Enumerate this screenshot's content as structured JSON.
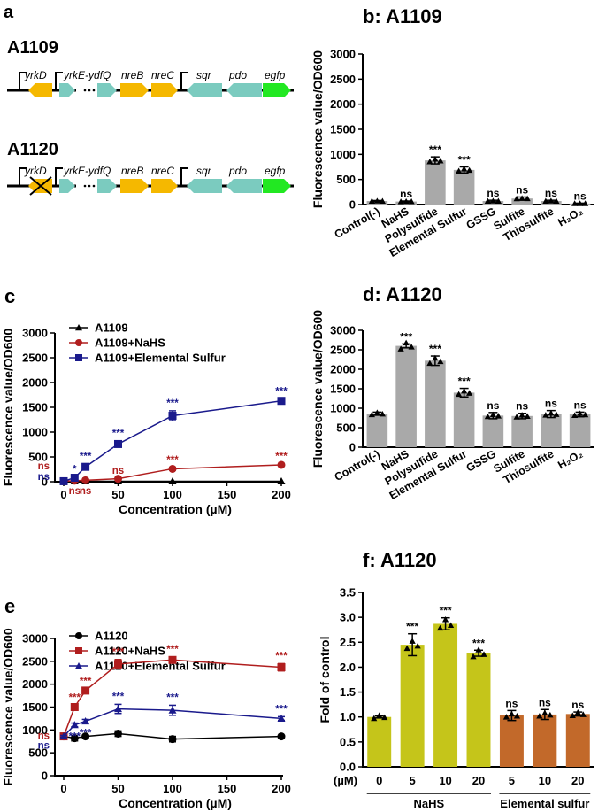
{
  "panels": {
    "a": {
      "letter": "a",
      "strains": [
        {
          "name": "A1109",
          "knockout": false
        },
        {
          "name": "A1120",
          "knockout": true
        }
      ],
      "gene_labels": {
        "yrkD": "yrkD",
        "yrkE": "yrkE-ydfQ",
        "nreB": "nreB",
        "nreC": "nreC",
        "sqr": "sqr",
        "pdo": "pdo",
        "egfp": "egfp"
      },
      "colors": {
        "yrkD": "#F5B800",
        "teal": "#7BCBBF",
        "nre": "#F5B800",
        "egfp": "#22E822"
      }
    }
  },
  "chart_data": [
    {
      "id": "b",
      "letter": "b",
      "type": "bar",
      "title": "b: A1109",
      "ylabel": "Fluorescence value/OD600",
      "ylim": [
        0,
        3000
      ],
      "yticks": [
        0,
        500,
        1000,
        1500,
        2000,
        2500,
        3000
      ],
      "categories": [
        "Control(-)",
        "NaHS",
        "Polysulfide",
        "Elemental Sulfur",
        "GSSG",
        "Sulfite",
        "Thiosulfite",
        "H₂O₂"
      ],
      "values": [
        70,
        60,
        880,
        690,
        70,
        120,
        70,
        20
      ],
      "errors": [
        10,
        10,
        70,
        60,
        15,
        30,
        15,
        8
      ],
      "significance": [
        "",
        "ns",
        "***",
        "***",
        "ns",
        "ns",
        "ns",
        "ns"
      ],
      "color": "#A9A9A9"
    },
    {
      "id": "c",
      "letter": "c",
      "type": "line",
      "xlabel": "Concentration (µM)",
      "ylabel": "Fluorescence value/OD600",
      "xlim": [
        0,
        200
      ],
      "ylim": [
        0,
        3000
      ],
      "xticks": [
        0,
        50,
        100,
        150,
        200
      ],
      "yticks": [
        0,
        500,
        1000,
        1500,
        2000,
        2500,
        3000
      ],
      "x": [
        0,
        10,
        20,
        50,
        100,
        200
      ],
      "series": [
        {
          "name": "A1109",
          "marker": "triangle",
          "color": "#000000",
          "values": [
            10,
            10,
            10,
            10,
            10,
            10
          ],
          "errors": [
            0,
            0,
            0,
            0,
            0,
            0
          ],
          "significance": [
            "",
            "",
            "",
            "",
            "",
            ""
          ]
        },
        {
          "name": "A1109+NaHS",
          "marker": "circle",
          "color": "#B01E1E",
          "values": [
            10,
            20,
            30,
            60,
            260,
            340
          ],
          "errors": [
            0,
            0,
            0,
            10,
            30,
            20
          ],
          "significance": [
            "ns",
            "ns",
            "ns",
            "ns",
            "***",
            "***"
          ]
        },
        {
          "name": "A1109+Elemental Sulfur",
          "marker": "square",
          "color": "#1A1A8C",
          "values": [
            10,
            80,
            300,
            760,
            1330,
            1630
          ],
          "errors": [
            0,
            20,
            60,
            60,
            100,
            40
          ],
          "significance": [
            "ns",
            "*",
            "***",
            "***",
            "***",
            "***"
          ]
        }
      ]
    },
    {
      "id": "d",
      "letter": "d",
      "type": "bar",
      "title": "d: A1120",
      "ylabel": "Fluorescence value/OD600",
      "ylim": [
        0,
        3000
      ],
      "yticks": [
        0,
        500,
        1000,
        1500,
        2000,
        2500,
        3000
      ],
      "categories": [
        "Control(-)",
        "NaHS",
        "Polysulfide",
        "Elemental Sulfur",
        "GSSG",
        "Sulfite",
        "Thiosulfite",
        "H₂O₂"
      ],
      "values": [
        860,
        2600,
        2220,
        1400,
        810,
        800,
        850,
        840
      ],
      "errors": [
        40,
        50,
        120,
        110,
        80,
        70,
        90,
        60
      ],
      "significance": [
        "",
        "***",
        "***",
        "***",
        "ns",
        "ns",
        "ns",
        "ns"
      ],
      "color": "#A9A9A9"
    },
    {
      "id": "e",
      "letter": "e",
      "type": "line",
      "xlabel": "Concentration (µM)",
      "ylabel": "Fluorescence value/OD600",
      "xlim": [
        0,
        200
      ],
      "ylim": [
        0,
        3000
      ],
      "xticks": [
        0,
        50,
        100,
        150,
        200
      ],
      "yticks": [
        0,
        500,
        1000,
        1500,
        2000,
        2500,
        3000
      ],
      "x": [
        0,
        10,
        20,
        50,
        100,
        200
      ],
      "series": [
        {
          "name": "A1120",
          "marker": "circle",
          "color": "#000000",
          "values": [
            860,
            820,
            860,
            920,
            800,
            860
          ],
          "errors": [
            20,
            60,
            30,
            60,
            60,
            20
          ],
          "significance": [
            "",
            "",
            "",
            "",
            "",
            ""
          ]
        },
        {
          "name": "A1120+NaHS",
          "marker": "square",
          "color": "#B01E1E",
          "values": [
            860,
            1500,
            1860,
            2440,
            2530,
            2370
          ],
          "errors": [
            20,
            40,
            40,
            100,
            60,
            80
          ],
          "significance": [
            "ns",
            "***",
            "***",
            "***",
            "***",
            "***"
          ]
        },
        {
          "name": "A1120+Elemental Sulfur",
          "marker": "triangle",
          "color": "#1A1A8C",
          "values": [
            860,
            1110,
            1190,
            1460,
            1430,
            1250
          ],
          "errors": [
            20,
            40,
            40,
            100,
            110,
            40
          ],
          "significance": [
            "ns",
            "***",
            "***",
            "***",
            "***",
            "***"
          ]
        }
      ]
    },
    {
      "id": "f",
      "letter": "f",
      "type": "bar",
      "title": "f: A1120",
      "ylabel": "Fold of control",
      "ylim": [
        0,
        3.5
      ],
      "yticks": [
        "0.0",
        "0.5",
        "1.0",
        "1.5",
        "2.0",
        "2.5",
        "3.0",
        "3.5"
      ],
      "xunit": "(µM)",
      "categories": [
        "0",
        "5",
        "10",
        "20",
        "5",
        "10",
        "20"
      ],
      "values": [
        1.0,
        2.45,
        2.87,
        2.28,
        1.03,
        1.05,
        1.06
      ],
      "errors": [
        0.02,
        0.22,
        0.12,
        0.06,
        0.1,
        0.1,
        0.04
      ],
      "significance": [
        "",
        "***",
        "***",
        "***",
        "ns",
        "ns",
        "ns"
      ],
      "colors": [
        "#C5C51A",
        "#C5C51A",
        "#C5C51A",
        "#C5C51A",
        "#C2692A",
        "#C2692A",
        "#C2692A"
      ],
      "groups": [
        {
          "label": "NaHS",
          "from": 0,
          "to": 3
        },
        {
          "label": "Elemental sulfur",
          "from": 4,
          "to": 6
        }
      ]
    }
  ]
}
